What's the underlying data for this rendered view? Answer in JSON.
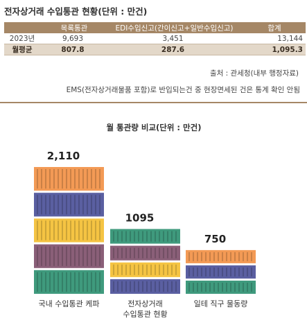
{
  "page_title": "전자상거래 수입통관 현황(단위 : 만건)",
  "table": {
    "headers": [
      "",
      "목록통관",
      "EDI수입신고(간이신고+일반수입신고)",
      "합계"
    ],
    "rows": [
      [
        "2023년",
        "9,693",
        "3,451",
        "13,144"
      ],
      [
        "월평균",
        "807.8",
        "287.6",
        "1,095.3"
      ]
    ]
  },
  "source_note": "출처 : 관세청(내부 행정자료)",
  "footnote": "EMS(전자상거래물품 포함)로 반입되는건 중 현장면세된 건은 통계 확인 안됨",
  "chart_data": {
    "type": "bar",
    "title": "월 통관량 비교(단위 : 만건)",
    "categories": [
      "국내 수입통관 케파",
      "전자상거래\n수입통관 현황",
      "일테 직구 물동량"
    ],
    "values": [
      2110,
      1095,
      750
    ],
    "value_labels": [
      "2,110",
      "1095",
      "750"
    ],
    "ylim": [
      0,
      2110
    ],
    "style": "stacked shipping containers",
    "container_colors": {
      "orange": "#f39a55",
      "navy": "#5a5fa1",
      "yellow": "#f5c443",
      "purple": "#8a5f78",
      "green": "#3f9a7d"
    },
    "bar_container_colors": [
      [
        "green",
        "purple",
        "yellow",
        "navy",
        "orange"
      ],
      [
        "navy",
        "yellow",
        "purple",
        "green"
      ],
      [
        "green",
        "navy",
        "orange"
      ]
    ]
  }
}
